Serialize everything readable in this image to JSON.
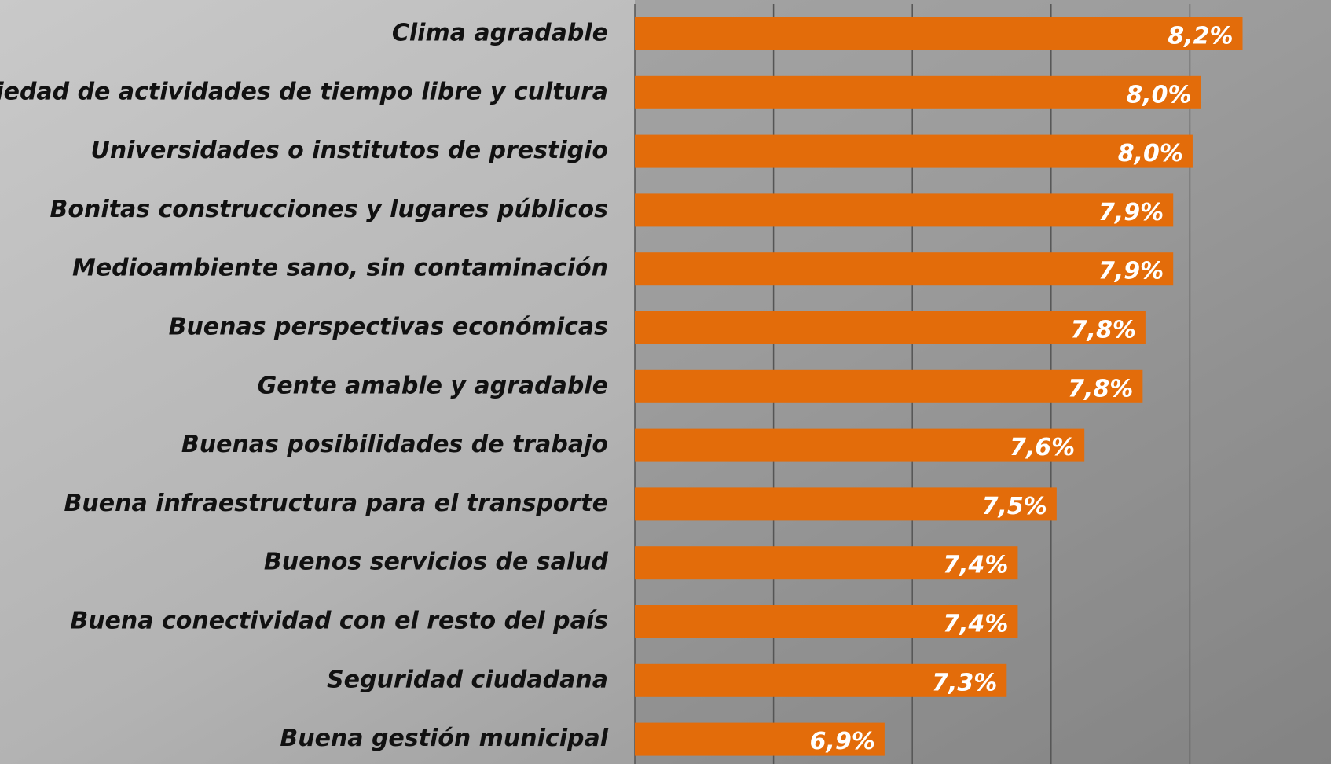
{
  "chart_data": {
    "type": "bar",
    "orientation": "horizontal",
    "categories": [
      "Clima agradable",
      "Variedad de actividades de tiempo libre y cultura",
      "Universidades o institutos de prestigio",
      "Bonitas construcciones y lugares públicos",
      "Medioambiente sano, sin contaminación",
      "Buenas perspectivas económicas",
      "Gente amable y agradable",
      "Buenas posibilidades de trabajo",
      "Buena infraestructura para el transporte",
      "Buenos servicios de salud",
      "Buena conectividad con el resto del país",
      "Seguridad ciudadana",
      "Buena gestión municipal"
    ],
    "values": [
      8.19,
      8.04,
      8.01,
      7.94,
      7.94,
      7.84,
      7.83,
      7.62,
      7.52,
      7.38,
      7.38,
      7.34,
      6.9
    ],
    "value_labels": [
      "8,2%",
      "8,0%",
      "8,0%",
      "7,9%",
      "7,9%",
      "7,8%",
      "7,8%",
      "7,6%",
      "7,5%",
      "7,4%",
      "7,4%",
      "7,3%",
      "6,9%"
    ],
    "color": "#e36c0a",
    "xlim": [
      6,
      8.5
    ],
    "xticks": [
      6,
      6.5,
      7,
      7.5,
      8
    ],
    "grid": true
  }
}
